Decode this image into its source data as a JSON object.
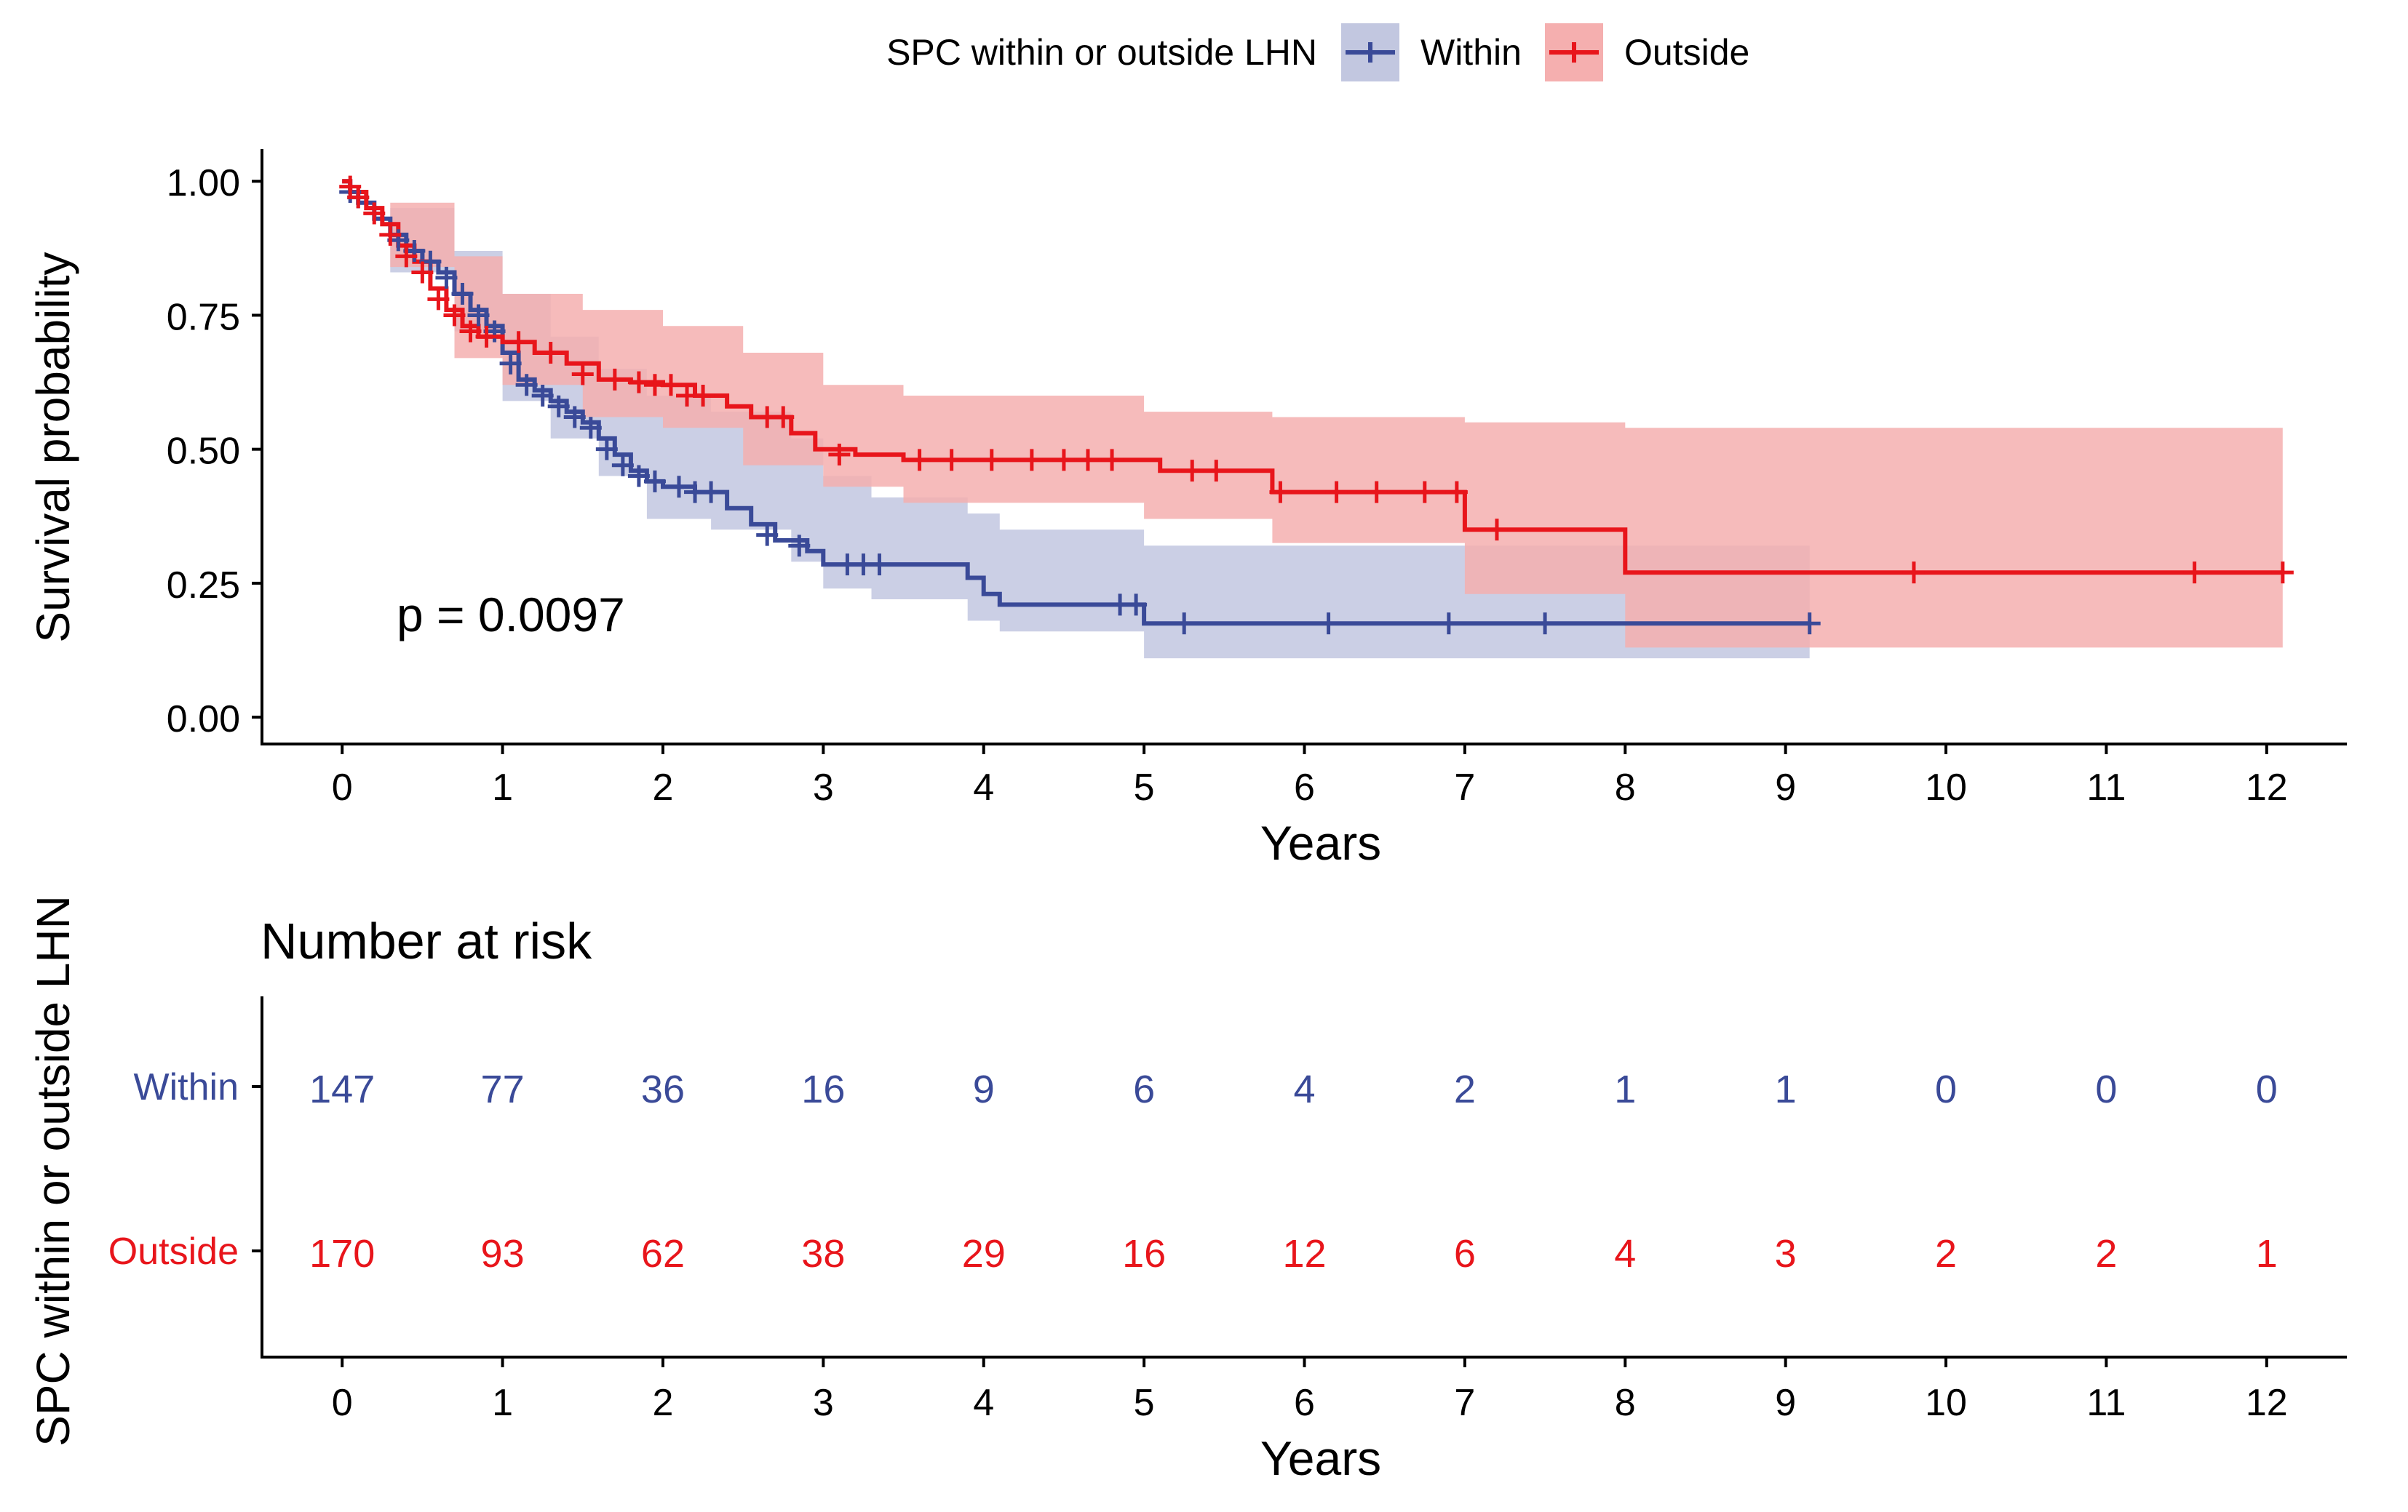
{
  "chart_data": [
    {
      "type": "line",
      "subtype": "kaplan-meier",
      "title": "",
      "xlabel": "Years",
      "ylabel": "Survival probability",
      "xlim": [
        -0.5,
        12.5
      ],
      "ylim": [
        -0.05,
        1.06
      ],
      "xticks": [
        "0",
        "1",
        "2",
        "3",
        "4",
        "5",
        "6",
        "7",
        "8",
        "9",
        "10",
        "11",
        "12"
      ],
      "yticks": [
        "0.00",
        "0.25",
        "0.50",
        "0.75",
        "1.00"
      ],
      "grid": false,
      "legend": {
        "title": "SPC within or outside LHN",
        "placement": "top-center",
        "entries": [
          {
            "name": "Within",
            "color": "#3A4A98"
          },
          {
            "name": "Outside",
            "color": "#E8151B"
          }
        ]
      },
      "annotation": {
        "text": "p = 0.0097",
        "x": 1.0,
        "y": 0.19
      },
      "series": [
        {
          "name": "Within",
          "color": "#3A4A98",
          "ci_color": "#C2C7E0",
          "steps": [
            [
              0,
              1.0
            ],
            [
              0.05,
              0.98
            ],
            [
              0.1,
              0.96
            ],
            [
              0.2,
              0.93
            ],
            [
              0.3,
              0.9
            ],
            [
              0.4,
              0.87
            ],
            [
              0.5,
              0.85
            ],
            [
              0.6,
              0.83
            ],
            [
              0.7,
              0.79
            ],
            [
              0.8,
              0.76
            ],
            [
              0.9,
              0.73
            ],
            [
              1.0,
              0.68
            ],
            [
              1.1,
              0.63
            ],
            [
              1.2,
              0.61
            ],
            [
              1.3,
              0.59
            ],
            [
              1.4,
              0.57
            ],
            [
              1.5,
              0.55
            ],
            [
              1.6,
              0.52
            ],
            [
              1.7,
              0.49
            ],
            [
              1.8,
              0.46
            ],
            [
              1.9,
              0.44
            ],
            [
              2.0,
              0.43
            ],
            [
              2.2,
              0.42
            ],
            [
              2.4,
              0.39
            ],
            [
              2.55,
              0.36
            ],
            [
              2.7,
              0.33
            ],
            [
              2.9,
              0.31
            ],
            [
              3.0,
              0.285
            ],
            [
              3.3,
              0.285
            ],
            [
              3.9,
              0.26
            ],
            [
              4.0,
              0.23
            ],
            [
              4.1,
              0.21
            ],
            [
              4.9,
              0.21
            ],
            [
              5.0,
              0.175
            ],
            [
              9.15,
              0.175
            ]
          ],
          "ci_upper": [
            [
              0,
              1.0
            ],
            [
              0.3,
              0.95
            ],
            [
              0.7,
              0.87
            ],
            [
              1.0,
              0.79
            ],
            [
              1.3,
              0.71
            ],
            [
              1.6,
              0.65
            ],
            [
              1.9,
              0.6
            ],
            [
              2.3,
              0.57
            ],
            [
              2.8,
              0.52
            ],
            [
              3.0,
              0.45
            ],
            [
              3.3,
              0.41
            ],
            [
              3.9,
              0.38
            ],
            [
              4.1,
              0.35
            ],
            [
              5.0,
              0.32
            ],
            [
              9.15,
              0.32
            ]
          ],
          "ci_lower": [
            [
              0,
              1.0
            ],
            [
              0.3,
              0.83
            ],
            [
              0.7,
              0.72
            ],
            [
              1.0,
              0.59
            ],
            [
              1.3,
              0.52
            ],
            [
              1.6,
              0.45
            ],
            [
              1.9,
              0.37
            ],
            [
              2.3,
              0.35
            ],
            [
              2.8,
              0.29
            ],
            [
              3.0,
              0.24
            ],
            [
              3.3,
              0.22
            ],
            [
              3.9,
              0.18
            ],
            [
              4.1,
              0.16
            ],
            [
              5.0,
              0.11
            ],
            [
              9.15,
              0.095
            ]
          ],
          "censored": [
            [
              0.05,
              0.98
            ],
            [
              0.1,
              0.97
            ],
            [
              0.35,
              0.89
            ],
            [
              0.45,
              0.87
            ],
            [
              0.55,
              0.85
            ],
            [
              0.65,
              0.82
            ],
            [
              0.75,
              0.79
            ],
            [
              0.85,
              0.75
            ],
            [
              0.95,
              0.72
            ],
            [
              1.05,
              0.66
            ],
            [
              1.15,
              0.62
            ],
            [
              1.25,
              0.6
            ],
            [
              1.35,
              0.58
            ],
            [
              1.45,
              0.56
            ],
            [
              1.55,
              0.54
            ],
            [
              1.65,
              0.5
            ],
            [
              1.75,
              0.47
            ],
            [
              1.85,
              0.45
            ],
            [
              1.95,
              0.44
            ],
            [
              2.1,
              0.43
            ],
            [
              2.2,
              0.42
            ],
            [
              2.3,
              0.42
            ],
            [
              2.65,
              0.34
            ],
            [
              2.85,
              0.32
            ],
            [
              3.15,
              0.285
            ],
            [
              3.25,
              0.285
            ],
            [
              3.35,
              0.285
            ],
            [
              4.85,
              0.21
            ],
            [
              4.95,
              0.21
            ],
            [
              5.25,
              0.175
            ],
            [
              6.15,
              0.175
            ],
            [
              6.9,
              0.175
            ],
            [
              7.5,
              0.175
            ],
            [
              9.15,
              0.175
            ]
          ]
        },
        {
          "name": "Outside",
          "color": "#E8151B",
          "ci_color": "#F5AFAF",
          "steps": [
            [
              0,
              1.0
            ],
            [
              0.05,
              0.98
            ],
            [
              0.15,
              0.95
            ],
            [
              0.25,
              0.92
            ],
            [
              0.35,
              0.88
            ],
            [
              0.45,
              0.85
            ],
            [
              0.55,
              0.8
            ],
            [
              0.65,
              0.76
            ],
            [
              0.75,
              0.73
            ],
            [
              0.85,
              0.71
            ],
            [
              1.0,
              0.7
            ],
            [
              1.2,
              0.68
            ],
            [
              1.4,
              0.66
            ],
            [
              1.6,
              0.63
            ],
            [
              1.8,
              0.625
            ],
            [
              2.0,
              0.62
            ],
            [
              2.2,
              0.6
            ],
            [
              2.4,
              0.58
            ],
            [
              2.55,
              0.56
            ],
            [
              2.8,
              0.53
            ],
            [
              2.95,
              0.5
            ],
            [
              3.2,
              0.49
            ],
            [
              3.5,
              0.48
            ],
            [
              4.9,
              0.48
            ],
            [
              5.1,
              0.46
            ],
            [
              5.8,
              0.42
            ],
            [
              7.0,
              0.35
            ],
            [
              8.0,
              0.27
            ],
            [
              12.1,
              0.27
            ]
          ],
          "ci_upper": [
            [
              0,
              1.0
            ],
            [
              0.3,
              0.96
            ],
            [
              0.7,
              0.86
            ],
            [
              1.0,
              0.79
            ],
            [
              1.5,
              0.76
            ],
            [
              2.0,
              0.73
            ],
            [
              2.5,
              0.68
            ],
            [
              3.0,
              0.62
            ],
            [
              3.5,
              0.6
            ],
            [
              5.0,
              0.57
            ],
            [
              5.8,
              0.56
            ],
            [
              7.0,
              0.55
            ],
            [
              8.0,
              0.54
            ],
            [
              12.1,
              0.54
            ]
          ],
          "ci_lower": [
            [
              0,
              1.0
            ],
            [
              0.3,
              0.84
            ],
            [
              0.7,
              0.67
            ],
            [
              1.0,
              0.62
            ],
            [
              1.5,
              0.56
            ],
            [
              2.0,
              0.54
            ],
            [
              2.5,
              0.47
            ],
            [
              3.0,
              0.43
            ],
            [
              3.5,
              0.4
            ],
            [
              5.0,
              0.37
            ],
            [
              5.8,
              0.325
            ],
            [
              7.0,
              0.23
            ],
            [
              8.0,
              0.13
            ],
            [
              12.1,
              0.13
            ]
          ],
          "censored": [
            [
              0.05,
              0.99
            ],
            [
              0.1,
              0.97
            ],
            [
              0.2,
              0.94
            ],
            [
              0.3,
              0.9
            ],
            [
              0.4,
              0.86
            ],
            [
              0.5,
              0.83
            ],
            [
              0.6,
              0.78
            ],
            [
              0.7,
              0.75
            ],
            [
              0.8,
              0.72
            ],
            [
              0.9,
              0.71
            ],
            [
              1.1,
              0.7
            ],
            [
              1.3,
              0.68
            ],
            [
              1.5,
              0.64
            ],
            [
              1.7,
              0.63
            ],
            [
              1.85,
              0.625
            ],
            [
              1.95,
              0.62
            ],
            [
              2.05,
              0.62
            ],
            [
              2.15,
              0.6
            ],
            [
              2.25,
              0.6
            ],
            [
              2.65,
              0.56
            ],
            [
              2.75,
              0.56
            ],
            [
              3.1,
              0.49
            ],
            [
              3.6,
              0.48
            ],
            [
              3.8,
              0.48
            ],
            [
              4.05,
              0.48
            ],
            [
              4.3,
              0.48
            ],
            [
              4.5,
              0.48
            ],
            [
              4.65,
              0.48
            ],
            [
              4.8,
              0.48
            ],
            [
              5.3,
              0.46
            ],
            [
              5.45,
              0.46
            ],
            [
              5.85,
              0.42
            ],
            [
              6.2,
              0.42
            ],
            [
              6.45,
              0.42
            ],
            [
              6.75,
              0.42
            ],
            [
              6.95,
              0.42
            ],
            [
              7.2,
              0.35
            ],
            [
              9.8,
              0.27
            ],
            [
              11.55,
              0.27
            ],
            [
              12.1,
              0.27
            ]
          ]
        }
      ]
    },
    {
      "type": "table",
      "title": "Number at risk",
      "xlabel": "Years",
      "ylabel": "SPC within or outside LHN",
      "xlim": [
        -0.5,
        12.5
      ],
      "times": [
        0,
        1,
        2,
        3,
        4,
        5,
        6,
        7,
        8,
        9,
        10,
        11,
        12
      ],
      "xticks": [
        "0",
        "1",
        "2",
        "3",
        "4",
        "5",
        "6",
        "7",
        "8",
        "9",
        "10",
        "11",
        "12"
      ],
      "rows": [
        {
          "name": "Within",
          "color": "#3A4A98",
          "values": [
            "147",
            "77",
            "36",
            "16",
            "9",
            "6",
            "4",
            "2",
            "1",
            "1",
            "0",
            "0",
            "0"
          ]
        },
        {
          "name": "Outside",
          "color": "#E8151B",
          "values": [
            "170",
            "93",
            "62",
            "38",
            "29",
            "16",
            "12",
            "6",
            "4",
            "3",
            "2",
            "2",
            "1"
          ]
        }
      ]
    }
  ]
}
